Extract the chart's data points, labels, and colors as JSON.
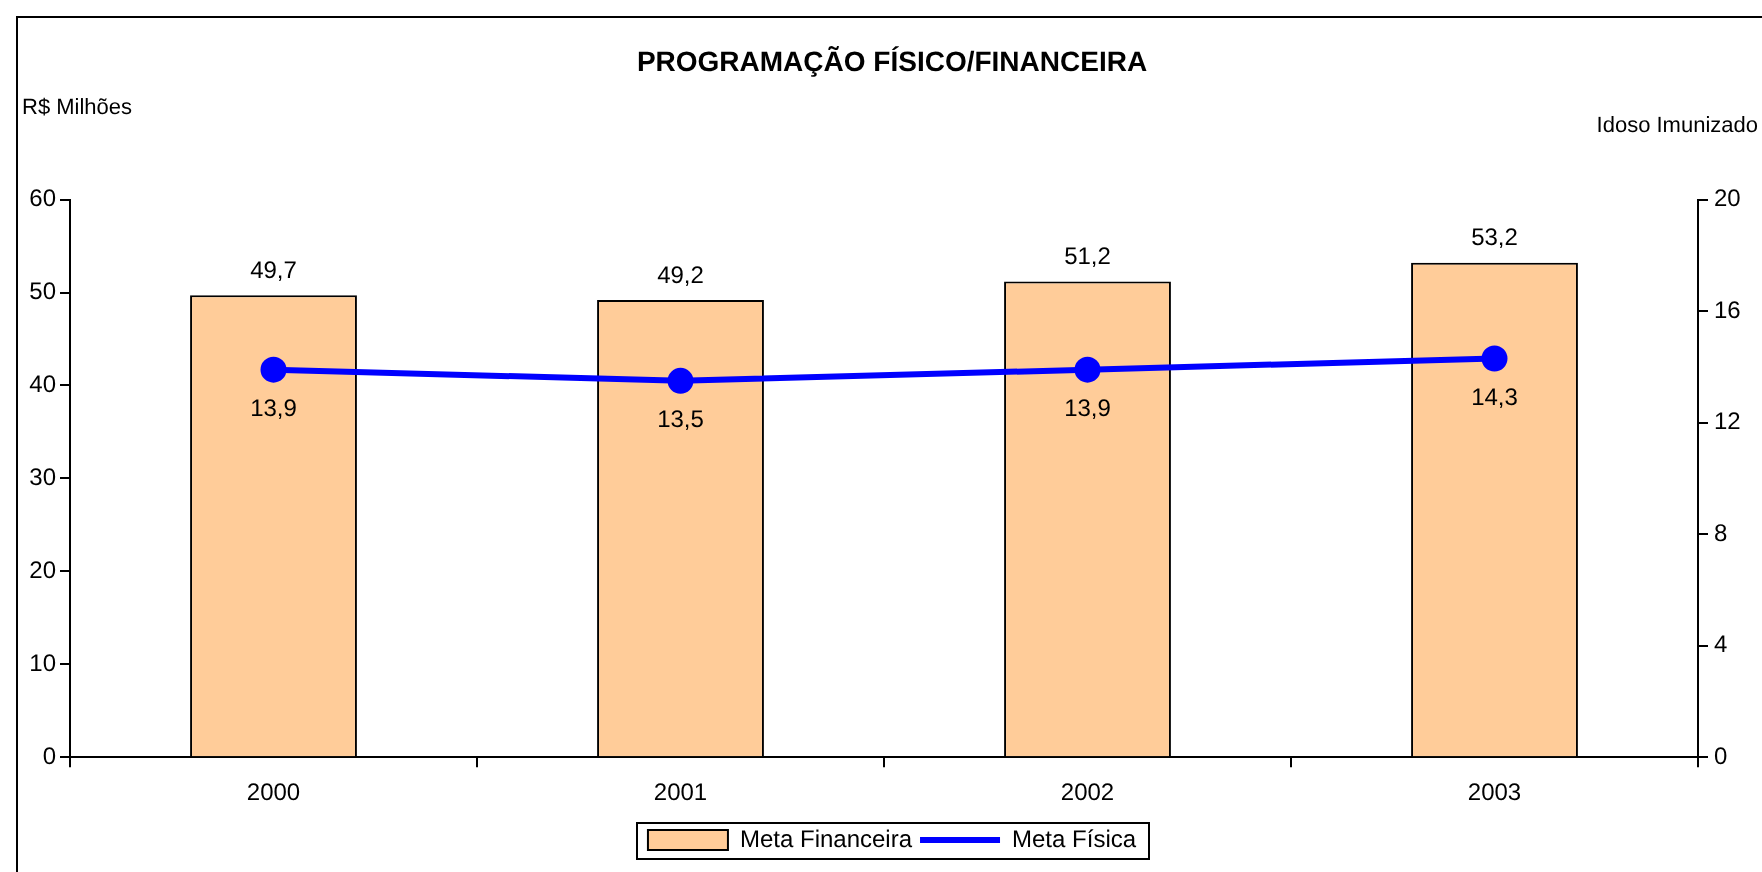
{
  "chart_data": {
    "type": "bar",
    "title": "PROGRAMAÇÃO FÍSICO/FINANCEIRA",
    "ylabel": "R$ Milhões",
    "y2label": "Idoso Imunizado",
    "categories": [
      "2000",
      "2001",
      "2002",
      "2003"
    ],
    "series": [
      {
        "name": "Meta Financeira",
        "color": "#ffcc99",
        "values": [
          49.7,
          49.2,
          51.2,
          53.2
        ],
        "value_labels": [
          "49,7",
          "49,2",
          "51,2",
          "53,2"
        ]
      },
      {
        "name": "Meta Física",
        "type": "line",
        "axis": "y2",
        "color": "#0000ff",
        "values": [
          13.9,
          13.5,
          13.9,
          14.3
        ],
        "value_labels": [
          "13,9",
          "13,5",
          "13,9",
          "14,3"
        ]
      }
    ],
    "ylim": [
      0,
      60
    ],
    "yticks": [
      0,
      10,
      20,
      30,
      40,
      50,
      60
    ],
    "y2lim": [
      0,
      20
    ],
    "y2ticks": [
      0,
      4,
      8,
      12,
      16,
      20
    ],
    "grid": false,
    "legend": "bottom",
    "marker": "circle",
    "line_style": "solid"
  }
}
